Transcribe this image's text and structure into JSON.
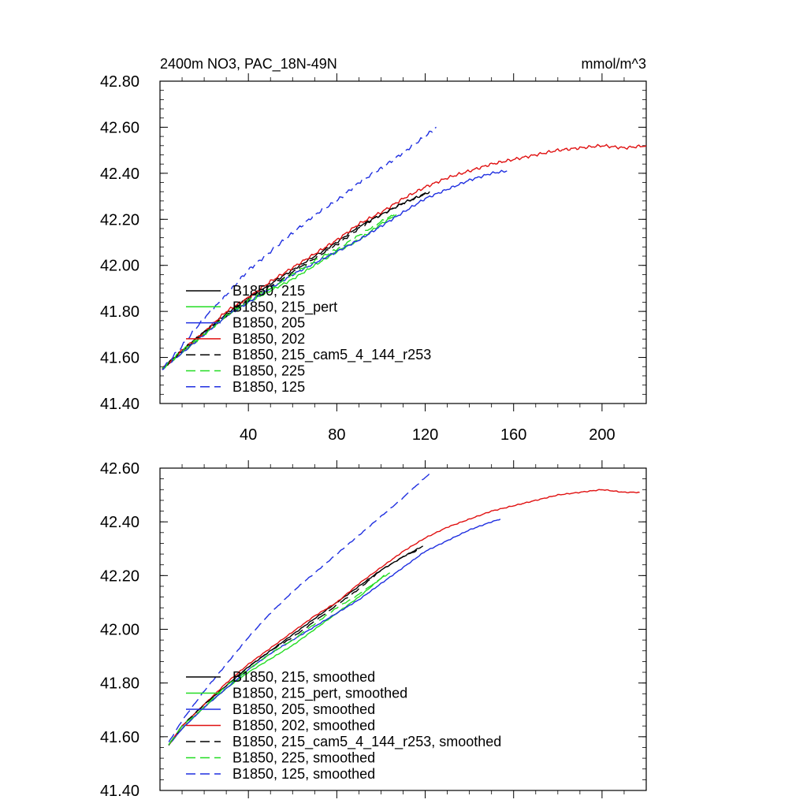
{
  "figure": {
    "title": "2400m NO3, PAC_18N-49N",
    "units": "mmol/m^3"
  },
  "colors": {
    "black": "#000000",
    "green": "#22dd22",
    "blue": "#1f2fe0",
    "red": "#e01010"
  },
  "chart_data": [
    {
      "type": "line",
      "title": "2400m NO3, PAC_18N-49N",
      "units_label": "mmol/m^3",
      "xlabel": "",
      "ylabel": "",
      "xlim": [
        0,
        220
      ],
      "ylim": [
        41.4,
        42.8
      ],
      "x_ticks": [
        40,
        80,
        120,
        160,
        200
      ],
      "x_tick_labels": [
        "40",
        "80",
        "120",
        "160",
        "200"
      ],
      "y_ticks": [
        41.4,
        41.6,
        41.8,
        42.0,
        42.2,
        42.4,
        42.6,
        42.8
      ],
      "y_tick_labels": [
        "41.40",
        "41.60",
        "41.80",
        "42.00",
        "42.20",
        "42.40",
        "42.60",
        "42.80"
      ],
      "legend_position": "lower-left",
      "series": [
        {
          "name": "B1850, 215",
          "color": "black",
          "dash": "solid",
          "noise": 0.006,
          "x": [
            1,
            10,
            20,
            30,
            40,
            50,
            60,
            70,
            80,
            90,
            100,
            110,
            122
          ],
          "y": [
            41.55,
            41.63,
            41.71,
            41.79,
            41.86,
            41.92,
            41.98,
            42.04,
            42.1,
            42.17,
            42.22,
            42.27,
            42.32
          ]
        },
        {
          "name": "B1850, 215_pert",
          "color": "green",
          "dash": "solid",
          "noise": 0.006,
          "x": [
            1,
            10,
            20,
            30,
            40,
            50,
            60,
            70,
            80,
            90,
            100,
            107
          ],
          "y": [
            41.55,
            41.62,
            41.7,
            41.78,
            41.84,
            41.89,
            41.94,
            42.0,
            42.06,
            42.11,
            42.18,
            42.22
          ]
        },
        {
          "name": "B1850, 205",
          "color": "blue",
          "dash": "solid",
          "noise": 0.006,
          "x": [
            1,
            10,
            20,
            30,
            40,
            50,
            60,
            70,
            80,
            90,
            100,
            110,
            120,
            130,
            140,
            150,
            157
          ],
          "y": [
            41.55,
            41.62,
            41.7,
            41.78,
            41.84,
            41.9,
            41.96,
            42.01,
            42.06,
            42.11,
            42.17,
            42.23,
            42.29,
            42.33,
            42.37,
            42.4,
            42.41
          ]
        },
        {
          "name": "B1850, 202",
          "color": "red",
          "dash": "solid",
          "noise": 0.007,
          "x": [
            1,
            10,
            20,
            30,
            40,
            50,
            60,
            70,
            80,
            90,
            100,
            110,
            120,
            130,
            140,
            150,
            160,
            170,
            180,
            190,
            200,
            210,
            220
          ],
          "y": [
            41.55,
            41.63,
            41.71,
            41.8,
            41.86,
            41.93,
            41.99,
            42.05,
            42.11,
            42.18,
            42.23,
            42.29,
            42.34,
            42.38,
            42.41,
            42.44,
            42.46,
            42.48,
            42.5,
            42.51,
            42.52,
            42.51,
            42.52
          ]
        },
        {
          "name": "B1850, 215_cam5_4_144_r253",
          "color": "black",
          "dash": "dashed",
          "noise": 0.006,
          "x": [
            1,
            10,
            20,
            30,
            40,
            50,
            60,
            70,
            80,
            90,
            100,
            110,
            120
          ],
          "y": [
            41.55,
            41.63,
            41.71,
            41.78,
            41.85,
            41.91,
            41.97,
            42.03,
            42.09,
            42.16,
            42.22,
            42.27,
            42.31
          ]
        },
        {
          "name": "B1850, 225",
          "color": "green",
          "dash": "dashed",
          "noise": 0.006,
          "x": [
            1,
            10,
            20,
            30,
            40,
            50,
            60,
            70,
            80,
            90,
            100,
            106
          ],
          "y": [
            41.55,
            41.63,
            41.7,
            41.78,
            41.85,
            41.9,
            41.96,
            42.02,
            42.07,
            42.13,
            42.19,
            42.22
          ]
        },
        {
          "name": "B1850, 125",
          "color": "blue",
          "dash": "dashed",
          "noise": 0.008,
          "x": [
            1,
            10,
            20,
            30,
            40,
            50,
            60,
            70,
            80,
            90,
            100,
            110,
            120,
            125
          ],
          "y": [
            41.55,
            41.65,
            41.77,
            41.87,
            41.98,
            42.06,
            42.14,
            42.22,
            42.28,
            42.36,
            42.42,
            42.49,
            42.56,
            42.6
          ]
        }
      ]
    },
    {
      "type": "line",
      "title": "",
      "xlabel": "",
      "ylabel": "",
      "xlim": [
        0,
        220
      ],
      "ylim": [
        41.4,
        42.6
      ],
      "x_ticks": [
        40,
        80,
        120,
        160,
        200
      ],
      "x_tick_labels": [],
      "y_ticks": [
        41.4,
        41.6,
        41.8,
        42.0,
        42.2,
        42.4,
        42.6
      ],
      "y_tick_labels": [
        "41.40",
        "41.60",
        "41.80",
        "42.00",
        "42.20",
        "42.40",
        "42.60"
      ],
      "legend_position": "lower-left",
      "series": [
        {
          "name": "B1850, 215, smoothed",
          "color": "black",
          "dash": "solid",
          "noise": 0.002,
          "x": [
            4,
            10,
            20,
            30,
            40,
            50,
            60,
            70,
            80,
            90,
            100,
            110,
            119
          ],
          "y": [
            41.57,
            41.64,
            41.72,
            41.79,
            41.86,
            41.92,
            41.98,
            42.04,
            42.1,
            42.16,
            42.22,
            42.27,
            42.31
          ]
        },
        {
          "name": "B1850, 215_pert, smoothed",
          "color": "green",
          "dash": "solid",
          "noise": 0.002,
          "x": [
            4,
            10,
            20,
            30,
            40,
            50,
            60,
            70,
            80,
            90,
            100,
            104
          ],
          "y": [
            41.57,
            41.63,
            41.71,
            41.78,
            41.84,
            41.89,
            41.94,
            42.0,
            42.06,
            42.12,
            42.19,
            42.21
          ]
        },
        {
          "name": "B1850, 205, smoothed",
          "color": "blue",
          "dash": "solid",
          "noise": 0.002,
          "x": [
            4,
            10,
            20,
            30,
            40,
            50,
            60,
            70,
            80,
            90,
            100,
            110,
            120,
            130,
            140,
            150,
            154
          ],
          "y": [
            41.57,
            41.63,
            41.71,
            41.78,
            41.85,
            41.91,
            41.96,
            42.01,
            42.06,
            42.11,
            42.17,
            42.23,
            42.29,
            42.33,
            42.37,
            42.4,
            42.41
          ]
        },
        {
          "name": "B1850, 202, smoothed",
          "color": "red",
          "dash": "solid",
          "noise": 0.002,
          "x": [
            4,
            10,
            20,
            30,
            40,
            50,
            60,
            70,
            80,
            90,
            100,
            110,
            120,
            130,
            140,
            150,
            160,
            170,
            180,
            190,
            200,
            210,
            217
          ],
          "y": [
            41.57,
            41.64,
            41.72,
            41.8,
            41.87,
            41.93,
            41.99,
            42.05,
            42.1,
            42.17,
            42.23,
            42.29,
            42.34,
            42.38,
            42.41,
            42.44,
            42.46,
            42.48,
            42.5,
            42.51,
            42.52,
            42.51,
            42.51
          ]
        },
        {
          "name": "B1850, 215_cam5_4_144_r253, smoothed",
          "color": "black",
          "dash": "dashed",
          "noise": 0.002,
          "x": [
            4,
            10,
            20,
            30,
            40,
            50,
            60,
            70,
            80,
            90,
            100,
            110,
            118
          ],
          "y": [
            41.57,
            41.64,
            41.72,
            41.79,
            41.86,
            41.92,
            41.97,
            42.03,
            42.09,
            42.15,
            42.22,
            42.27,
            42.3
          ]
        },
        {
          "name": "B1850, 225, smoothed",
          "color": "green",
          "dash": "dashed",
          "noise": 0.002,
          "x": [
            4,
            10,
            20,
            30,
            40,
            50,
            60,
            70,
            80,
            90,
            100,
            103
          ],
          "y": [
            41.57,
            41.64,
            41.71,
            41.79,
            41.85,
            41.91,
            41.96,
            42.02,
            42.08,
            42.13,
            42.19,
            42.21
          ]
        },
        {
          "name": "B1850, 125, smoothed",
          "color": "blue",
          "dash": "dashed",
          "noise": 0.002,
          "x": [
            4,
            10,
            20,
            30,
            40,
            50,
            60,
            70,
            80,
            90,
            100,
            110,
            122
          ],
          "y": [
            41.58,
            41.66,
            41.77,
            41.87,
            41.97,
            42.06,
            42.14,
            42.21,
            42.28,
            42.35,
            42.42,
            42.49,
            42.58
          ]
        }
      ]
    }
  ]
}
